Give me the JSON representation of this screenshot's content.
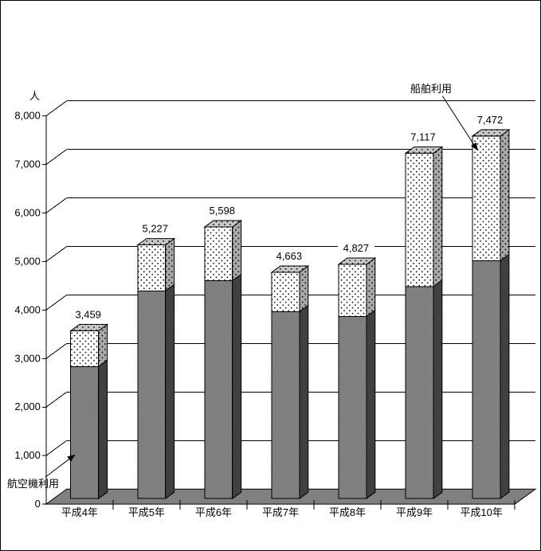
{
  "chart_data": {
    "type": "bar",
    "stacked": true,
    "effect": "3d",
    "unit_label": "人",
    "categories": [
      "平成4年",
      "平成5年",
      "平成6年",
      "平成7年",
      "平成8年",
      "平成9年",
      "平成10年"
    ],
    "series": [
      {
        "name": "航空機利用",
        "pattern": "checker",
        "values": [
          2720,
          4280,
          4490,
          3850,
          3750,
          4370,
          4900
        ]
      },
      {
        "name": "船舶利用",
        "pattern": "dots",
        "values": [
          739,
          947,
          1108,
          813,
          1077,
          2747,
          2572
        ]
      }
    ],
    "totals": [
      3459,
      5227,
      5598,
      4663,
      4827,
      7117,
      7472
    ],
    "total_labels": [
      "3,459",
      "5,227",
      "5,598",
      "4,663",
      "4,827",
      "7,117",
      "7,472"
    ],
    "y_axis": {
      "min": 0,
      "max": 8000,
      "step": 1000,
      "tick_labels": [
        "0",
        "1,000",
        "2,000",
        "3,000",
        "4,000",
        "5,000",
        "6,000",
        "7,000",
        "8,000"
      ]
    },
    "grid": true,
    "legend": "none",
    "annotations": {
      "ship": {
        "label": "船舶利用",
        "points_to": "平成10年"
      },
      "airplane": {
        "label": "航空機利用",
        "points_to": "平成4年"
      }
    }
  },
  "colors": {
    "background": "#ffffff",
    "line": "#000000",
    "floor": "#808080",
    "bar_top_face": "#c8c8c8",
    "dot_side_bg": "#a8a8a8",
    "checker_side_bg": "#808080",
    "label_bg": "#ffffff"
  }
}
